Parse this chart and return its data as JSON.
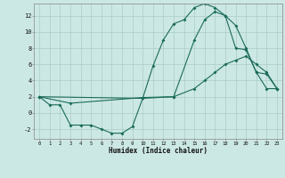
{
  "title": "",
  "xlabel": "Humidex (Indice chaleur)",
  "bg_color": "#cce8e4",
  "grid_color": "#aaccc8",
  "line_color": "#1a6b5a",
  "xlim": [
    -0.5,
    23.5
  ],
  "ylim": [
    -3.2,
    13.5
  ],
  "xtick_labels": [
    "0",
    "1",
    "2",
    "3",
    "4",
    "5",
    "6",
    "7",
    "8",
    "9",
    "10",
    "11",
    "12",
    "13",
    "14",
    "15",
    "16",
    "17",
    "18",
    "19",
    "20",
    "21",
    "22",
    "23"
  ],
  "yticks": [
    -2,
    0,
    2,
    4,
    6,
    8,
    10,
    12
  ],
  "series1": {
    "x": [
      0,
      1,
      2,
      3,
      4,
      5,
      6,
      7,
      8,
      9,
      10,
      11,
      12,
      13,
      14,
      15,
      16,
      17,
      18,
      19,
      20,
      21,
      22,
      23
    ],
    "y": [
      2,
      1,
      1,
      -1.5,
      -1.5,
      -1.5,
      -2,
      -2.5,
      -2.5,
      -1.7,
      1.8,
      5.8,
      9,
      11,
      11.5,
      13,
      13.5,
      13,
      12,
      8,
      7.8,
      5,
      3,
      3
    ]
  },
  "series2": {
    "x": [
      0,
      3,
      10,
      13,
      15,
      16,
      17,
      18,
      19,
      20,
      21,
      22,
      23
    ],
    "y": [
      2,
      1.2,
      1.9,
      2,
      9,
      11.5,
      12.5,
      12,
      10.8,
      8,
      5,
      4.8,
      3
    ]
  },
  "series3": {
    "x": [
      0,
      10,
      13,
      15,
      16,
      17,
      18,
      19,
      20,
      21,
      22,
      23
    ],
    "y": [
      2,
      1.8,
      2,
      3,
      4,
      5,
      6,
      6.5,
      7,
      6,
      5,
      3
    ]
  }
}
